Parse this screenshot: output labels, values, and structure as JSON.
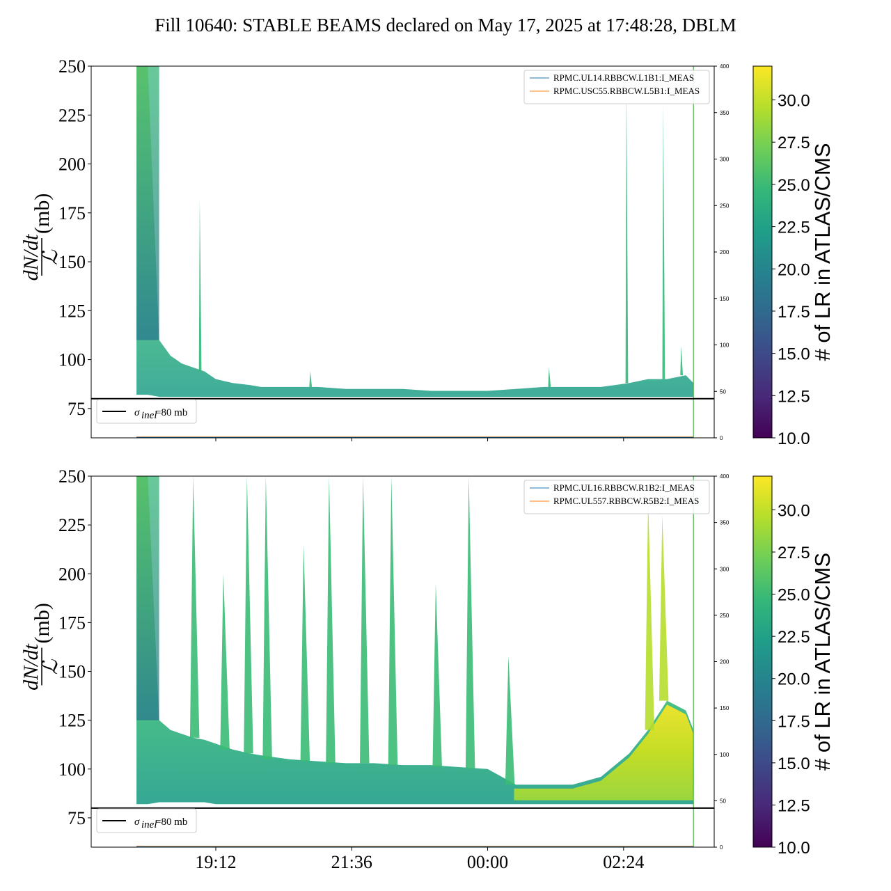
{
  "title": "Fill 10640: STABLE BEAMS declared on May 17, 2025 at 17:48:28, DBLM",
  "colors": {
    "viridis": [
      "#440154",
      "#482878",
      "#3e4989",
      "#31688e",
      "#26828e",
      "#1f9e89",
      "#35b779",
      "#6ece58",
      "#b5de2b",
      "#fde725"
    ],
    "series_blue": "#1f77b4",
    "series_orange": "#ff7f0e",
    "threshold": "#000000",
    "marker_green": "#2ca02c"
  },
  "ylabel": {
    "numerator": "dN/dt",
    "denominator": "ℒ",
    "unit": "(mb)"
  },
  "colorbar": {
    "label": "# of LR in ATLAS/CMS",
    "range": [
      10.0,
      32.0
    ],
    "tick_labels": [
      "10.0",
      "12.5",
      "15.0",
      "17.5",
      "20.0",
      "22.5",
      "25.0",
      "27.5",
      "30.0"
    ]
  },
  "threshold_legend": {
    "label": "σ",
    "subscript": "inel",
    "value_text": "=80 mb"
  },
  "chart_data": [
    {
      "type": "line",
      "panel": "top",
      "ylim": [
        60,
        250
      ],
      "y_ticks": [
        "75",
        "100",
        "125",
        "150",
        "175",
        "200",
        "225",
        "250"
      ],
      "y2lim": [
        0,
        400
      ],
      "y2_ticks": [
        "0",
        "50",
        "100",
        "150",
        "200",
        "250",
        "300",
        "350",
        "400"
      ],
      "x_ticks": [],
      "threshold": 80,
      "legend": [
        "RPMC.UL14.RBBCW.L1B1:I_MEAS",
        "RPMC.USC55.RBBCW.L5B1:I_MEAS"
      ],
      "x": [
        "17:48",
        "18:00",
        "18:12",
        "18:24",
        "18:36",
        "18:48",
        "19:00",
        "19:12",
        "19:30",
        "19:48",
        "20:00",
        "20:30",
        "21:00",
        "21:30",
        "22:00",
        "22:30",
        "23:00",
        "23:30",
        "00:00",
        "00:30",
        "01:00",
        "01:30",
        "02:00",
        "02:30",
        "02:50",
        "03:10",
        "03:30",
        "03:38"
      ],
      "band_low": [
        82,
        82,
        81,
        81,
        81,
        81,
        81,
        81,
        81,
        81,
        81,
        81,
        81,
        81,
        81,
        81,
        81,
        81,
        81,
        81,
        81,
        81,
        81,
        81,
        81,
        81,
        81,
        81
      ],
      "band_high": [
        250,
        250,
        110,
        102,
        98,
        96,
        94,
        90,
        88,
        87,
        86,
        86,
        86,
        85,
        85,
        85,
        84,
        84,
        84,
        85,
        86,
        86,
        86,
        88,
        90,
        90,
        92,
        88
      ],
      "spikes": [
        {
          "x": "18:55",
          "y": 182
        },
        {
          "x": "20:52",
          "y": 94
        },
        {
          "x": "01:05",
          "y": 96
        },
        {
          "x": "02:27",
          "y": 240
        },
        {
          "x": "03:06",
          "y": 230
        },
        {
          "x": "03:25",
          "y": 107
        }
      ]
    },
    {
      "type": "line",
      "panel": "bottom",
      "ylim": [
        60,
        250
      ],
      "y_ticks": [
        "75",
        "100",
        "125",
        "150",
        "175",
        "200",
        "225",
        "250"
      ],
      "y2lim": [
        0,
        400
      ],
      "y2_ticks": [
        "0",
        "50",
        "100",
        "150",
        "200",
        "250",
        "300",
        "350",
        "400"
      ],
      "x_ticks": [
        "19:12",
        "21:36",
        "00:00",
        "02:24"
      ],
      "threshold": 80,
      "legend": [
        "RPMC.UL16.RBBCW.R1B2:I_MEAS",
        "RPMC.UL557.RBBCW.R5B2:I_MEAS"
      ],
      "x": [
        "17:48",
        "18:00",
        "18:12",
        "18:24",
        "18:36",
        "18:48",
        "19:00",
        "19:12",
        "19:30",
        "19:48",
        "20:00",
        "20:30",
        "21:00",
        "21:30",
        "22:00",
        "22:30",
        "23:00",
        "23:30",
        "00:00",
        "00:30",
        "01:00",
        "01:30",
        "02:00",
        "02:30",
        "02:50",
        "03:10",
        "03:30",
        "03:38"
      ],
      "band_low": [
        82,
        82,
        83,
        83,
        83,
        83,
        83,
        82,
        82,
        82,
        82,
        82,
        82,
        82,
        82,
        82,
        82,
        82,
        82,
        82,
        82,
        82,
        82,
        82,
        82,
        82,
        82,
        82
      ],
      "band_high": [
        250,
        250,
        125,
        120,
        118,
        116,
        115,
        113,
        110,
        108,
        107,
        105,
        104,
        103,
        103,
        102,
        102,
        101,
        100,
        92,
        92,
        92,
        96,
        108,
        120,
        135,
        130,
        120
      ],
      "spikes": [
        {
          "x": "18:48",
          "y": 250
        },
        {
          "x": "19:20",
          "y": 200
        },
        {
          "x": "19:45",
          "y": 250
        },
        {
          "x": "20:05",
          "y": 250
        },
        {
          "x": "20:45",
          "y": 215
        },
        {
          "x": "21:12",
          "y": 250
        },
        {
          "x": "21:48",
          "y": 250
        },
        {
          "x": "22:18",
          "y": 250
        },
        {
          "x": "23:05",
          "y": 195
        },
        {
          "x": "23:40",
          "y": 250
        },
        {
          "x": "00:22",
          "y": 158
        },
        {
          "x": "02:50",
          "y": 238
        },
        {
          "x": "03:05",
          "y": 230
        }
      ]
    }
  ]
}
